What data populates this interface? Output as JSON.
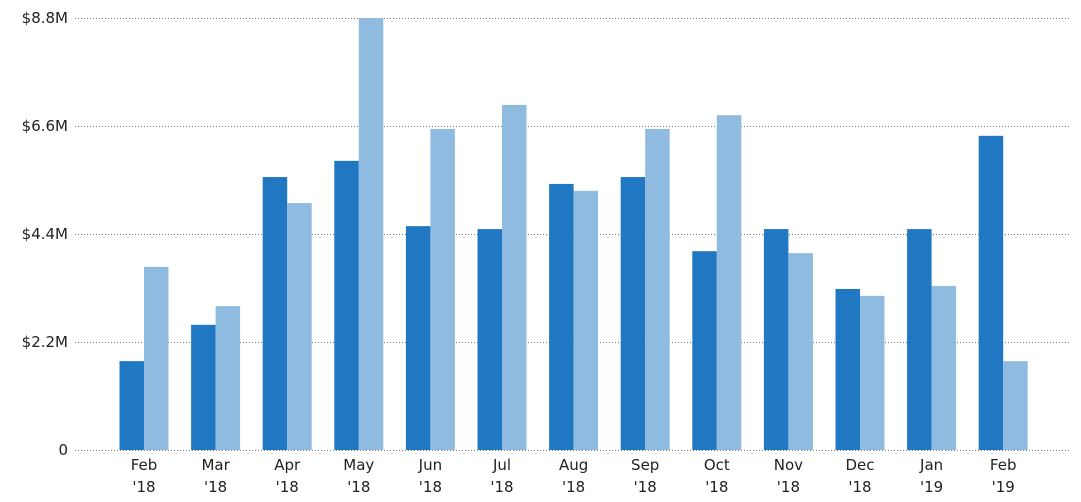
{
  "chart_data": {
    "type": "bar",
    "categories": [
      "Feb '18",
      "Mar '18",
      "Apr '18",
      "May '18",
      "Jun '18",
      "Jul '18",
      "Aug '18",
      "Sep '18",
      "Oct '18",
      "Nov '18",
      "Dec '18",
      "Jan '19",
      "Feb '19"
    ],
    "series": [
      {
        "color": "#1f78c1",
        "values": [
          1810000,
          2550000,
          5560000,
          5890000,
          4560000,
          4500000,
          5420000,
          5560000,
          4050000,
          4500000,
          3280000,
          4500000,
          6400000
        ]
      },
      {
        "color": "#8fbbe0",
        "values": [
          3730000,
          2930000,
          5030000,
          8800000,
          6540000,
          7030000,
          5280000,
          6540000,
          6820000,
          4010000,
          3140000,
          3340000,
          1810000
        ]
      }
    ],
    "ylim": [
      0,
      8800000
    ],
    "yticks": [
      0,
      {
        "value": 2200000,
        "label": "$2.2M"
      },
      {
        "value": 4400000,
        "label": "$4.4M"
      },
      {
        "value": 6600000,
        "label": "$6.6M"
      },
      {
        "value": 8800000,
        "label": "$8.8M"
      }
    ],
    "grid": true
  }
}
